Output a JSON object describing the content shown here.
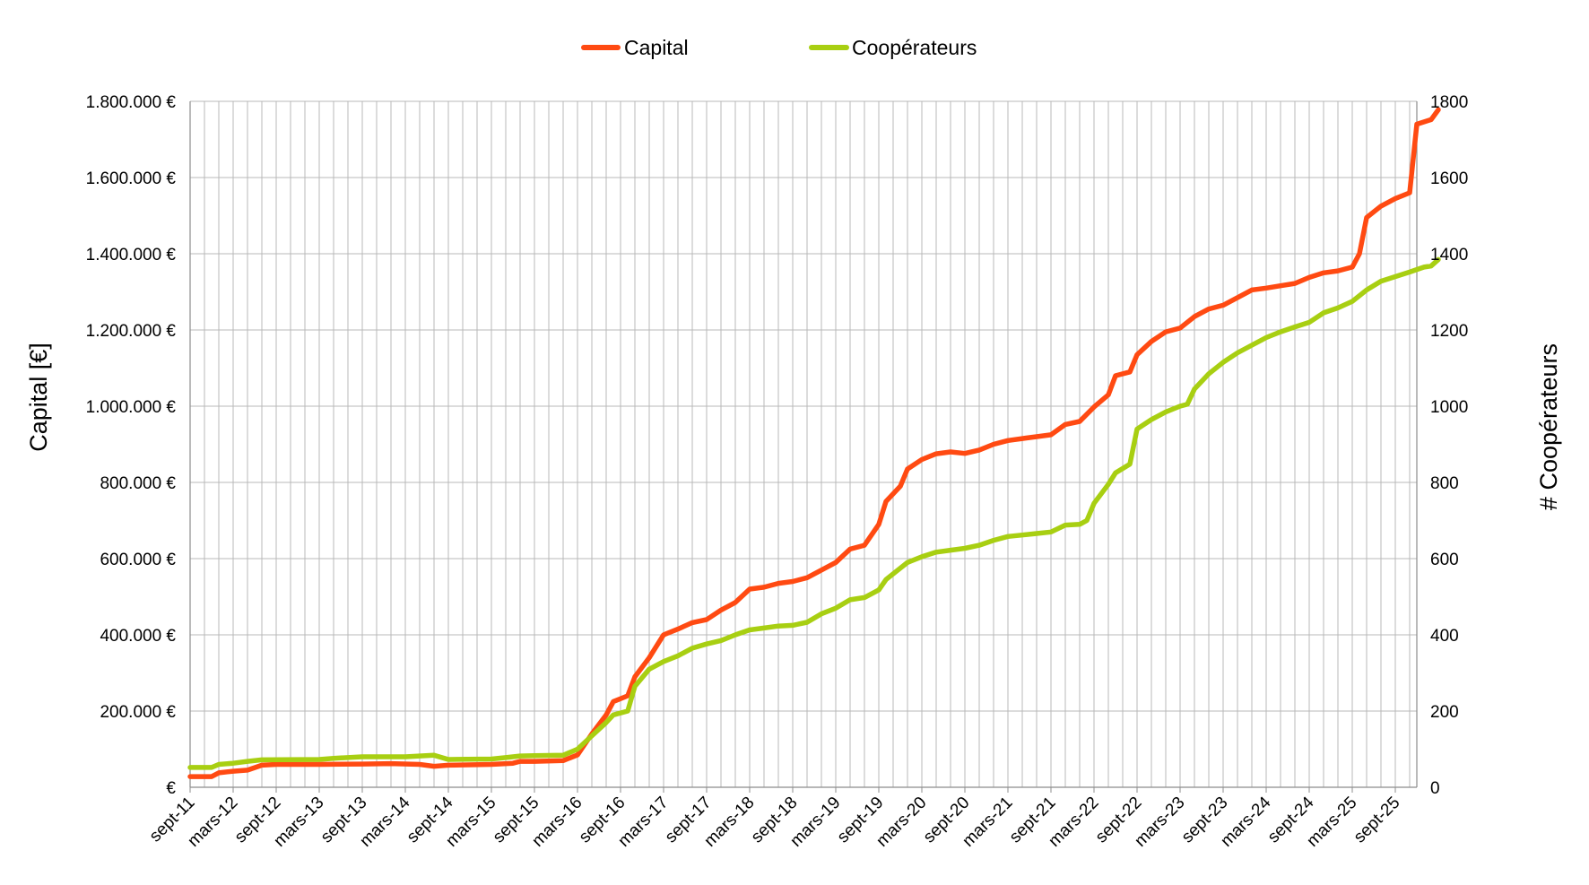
{
  "chart_data": {
    "type": "line",
    "legend_position": "top-center",
    "grid": true,
    "x_axis": {
      "tick_labels": [
        "sept-11",
        "mars-12",
        "sept-12",
        "mars-13",
        "sept-13",
        "mars-14",
        "sept-14",
        "mars-15",
        "sept-15",
        "mars-16",
        "sept-16",
        "mars-17",
        "sept-17",
        "mars-18",
        "sept-18",
        "mars-19",
        "sept-19",
        "mars-20",
        "sept-20",
        "mars-21",
        "sept-21",
        "mars-22",
        "sept-22",
        "mars-23",
        "sept-23",
        "mars-24",
        "sept-24",
        "mars-25",
        "sept-25"
      ],
      "range": [
        "2011-09",
        "2025-12"
      ]
    },
    "y_axis_left": {
      "label": "Capital [€]",
      "range": [
        0,
        1800000
      ],
      "tick_labels": [
        "€",
        "200.000 €",
        "400.000 €",
        "600.000 €",
        "800.000 €",
        "1.000.000 €",
        "1.200.000 €",
        "1.400.000 €",
        "1.600.000 €",
        "1.800.000 €"
      ]
    },
    "y_axis_right": {
      "label": "# Coopérateurs",
      "range": [
        0,
        1800
      ],
      "tick_labels": [
        "0",
        "200",
        "400",
        "600",
        "800",
        "1000",
        "1200",
        "1400",
        "1600",
        "1800"
      ]
    },
    "series": [
      {
        "name": "Capital",
        "axis": "left",
        "color": "#ff4a12",
        "points": [
          [
            "2011-09",
            28000
          ],
          [
            "2011-12",
            28000
          ],
          [
            "2012-01",
            38000
          ],
          [
            "2012-03",
            42000
          ],
          [
            "2012-05",
            45000
          ],
          [
            "2012-07",
            58000
          ],
          [
            "2012-09",
            60000
          ],
          [
            "2013-03",
            60000
          ],
          [
            "2013-09",
            61000
          ],
          [
            "2014-01",
            62000
          ],
          [
            "2014-05",
            60000
          ],
          [
            "2014-07",
            55000
          ],
          [
            "2014-09",
            58000
          ],
          [
            "2015-03",
            60000
          ],
          [
            "2015-06",
            63000
          ],
          [
            "2015-07",
            68000
          ],
          [
            "2015-09",
            68000
          ],
          [
            "2016-01",
            70000
          ],
          [
            "2016-03",
            85000
          ],
          [
            "2016-05",
            140000
          ],
          [
            "2016-07",
            190000
          ],
          [
            "2016-08",
            225000
          ],
          [
            "2016-10",
            240000
          ],
          [
            "2016-11",
            290000
          ],
          [
            "2017-01",
            340000
          ],
          [
            "2017-03",
            400000
          ],
          [
            "2017-05",
            415000
          ],
          [
            "2017-07",
            432000
          ],
          [
            "2017-09",
            440000
          ],
          [
            "2017-11",
            465000
          ],
          [
            "2018-01",
            485000
          ],
          [
            "2018-03",
            520000
          ],
          [
            "2018-05",
            525000
          ],
          [
            "2018-07",
            535000
          ],
          [
            "2018-09",
            540000
          ],
          [
            "2018-11",
            550000
          ],
          [
            "2019-01",
            570000
          ],
          [
            "2019-03",
            590000
          ],
          [
            "2019-05",
            625000
          ],
          [
            "2019-07",
            635000
          ],
          [
            "2019-09",
            690000
          ],
          [
            "2019-10",
            750000
          ],
          [
            "2019-12",
            790000
          ],
          [
            "2020-01",
            835000
          ],
          [
            "2020-03",
            860000
          ],
          [
            "2020-05",
            875000
          ],
          [
            "2020-07",
            880000
          ],
          [
            "2020-09",
            876000
          ],
          [
            "2020-11",
            885000
          ],
          [
            "2021-01",
            900000
          ],
          [
            "2021-03",
            910000
          ],
          [
            "2021-05",
            915000
          ],
          [
            "2021-07",
            920000
          ],
          [
            "2021-09",
            925000
          ],
          [
            "2021-11",
            952000
          ],
          [
            "2022-01",
            960000
          ],
          [
            "2022-03",
            998000
          ],
          [
            "2022-05",
            1030000
          ],
          [
            "2022-06",
            1080000
          ],
          [
            "2022-08",
            1090000
          ],
          [
            "2022-09",
            1135000
          ],
          [
            "2022-11",
            1170000
          ],
          [
            "2023-01",
            1195000
          ],
          [
            "2023-03",
            1205000
          ],
          [
            "2023-05",
            1235000
          ],
          [
            "2023-07",
            1255000
          ],
          [
            "2023-09",
            1265000
          ],
          [
            "2023-11",
            1285000
          ],
          [
            "2024-01",
            1305000
          ],
          [
            "2024-03",
            1310000
          ],
          [
            "2024-05",
            1316000
          ],
          [
            "2024-07",
            1322000
          ],
          [
            "2024-09",
            1338000
          ],
          [
            "2024-11",
            1350000
          ],
          [
            "2025-01",
            1355000
          ],
          [
            "2025-03",
            1365000
          ],
          [
            "2025-04",
            1400000
          ],
          [
            "2025-05",
            1495000
          ],
          [
            "2025-07",
            1525000
          ],
          [
            "2025-09",
            1545000
          ],
          [
            "2025-11",
            1560000
          ],
          [
            "2025-12",
            1740000
          ],
          [
            "2026-02",
            1752000
          ],
          [
            "2026-03",
            1778000
          ]
        ]
      },
      {
        "name": "Coopérateurs",
        "axis": "right",
        "color": "#a8cf12",
        "points": [
          [
            "2011-09",
            52
          ],
          [
            "2011-12",
            52
          ],
          [
            "2012-01",
            60
          ],
          [
            "2012-03",
            63
          ],
          [
            "2012-05",
            68
          ],
          [
            "2012-07",
            72
          ],
          [
            "2013-03",
            73
          ],
          [
            "2013-05",
            76
          ],
          [
            "2013-09",
            80
          ],
          [
            "2014-03",
            80
          ],
          [
            "2014-07",
            84
          ],
          [
            "2014-09",
            73
          ],
          [
            "2015-03",
            74
          ],
          [
            "2015-05",
            78
          ],
          [
            "2015-07",
            82
          ],
          [
            "2015-09",
            83
          ],
          [
            "2016-01",
            84
          ],
          [
            "2016-03",
            100
          ],
          [
            "2016-05",
            135
          ],
          [
            "2016-07",
            170
          ],
          [
            "2016-08",
            190
          ],
          [
            "2016-10",
            200
          ],
          [
            "2016-11",
            265
          ],
          [
            "2017-01",
            310
          ],
          [
            "2017-03",
            330
          ],
          [
            "2017-05",
            345
          ],
          [
            "2017-07",
            365
          ],
          [
            "2017-09",
            376
          ],
          [
            "2017-11",
            385
          ],
          [
            "2018-01",
            400
          ],
          [
            "2018-03",
            413
          ],
          [
            "2018-05",
            418
          ],
          [
            "2018-07",
            423
          ],
          [
            "2018-09",
            425
          ],
          [
            "2018-11",
            433
          ],
          [
            "2019-01",
            455
          ],
          [
            "2019-03",
            470
          ],
          [
            "2019-05",
            492
          ],
          [
            "2019-07",
            498
          ],
          [
            "2019-09",
            518
          ],
          [
            "2019-10",
            545
          ],
          [
            "2019-12",
            575
          ],
          [
            "2020-01",
            590
          ],
          [
            "2020-03",
            605
          ],
          [
            "2020-05",
            617
          ],
          [
            "2020-07",
            622
          ],
          [
            "2020-09",
            627
          ],
          [
            "2020-11",
            635
          ],
          [
            "2021-01",
            648
          ],
          [
            "2021-03",
            658
          ],
          [
            "2021-05",
            662
          ],
          [
            "2021-07",
            666
          ],
          [
            "2021-09",
            670
          ],
          [
            "2021-11",
            688
          ],
          [
            "2022-01",
            690
          ],
          [
            "2022-02",
            700
          ],
          [
            "2022-03",
            745
          ],
          [
            "2022-05",
            795
          ],
          [
            "2022-06",
            825
          ],
          [
            "2022-08",
            848
          ],
          [
            "2022-09",
            940
          ],
          [
            "2022-11",
            965
          ],
          [
            "2023-01",
            985
          ],
          [
            "2023-03",
            1000
          ],
          [
            "2023-04",
            1005
          ],
          [
            "2023-05",
            1045
          ],
          [
            "2023-07",
            1085
          ],
          [
            "2023-09",
            1115
          ],
          [
            "2023-11",
            1140
          ],
          [
            "2024-01",
            1160
          ],
          [
            "2024-03",
            1180
          ],
          [
            "2024-05",
            1195
          ],
          [
            "2024-07",
            1208
          ],
          [
            "2024-09",
            1220
          ],
          [
            "2024-11",
            1245
          ],
          [
            "2025-01",
            1258
          ],
          [
            "2025-03",
            1275
          ],
          [
            "2025-05",
            1305
          ],
          [
            "2025-07",
            1328
          ],
          [
            "2025-09",
            1340
          ],
          [
            "2025-11",
            1352
          ],
          [
            "2026-01",
            1365
          ],
          [
            "2026-02",
            1368
          ],
          [
            "2026-03",
            1385
          ]
        ]
      }
    ]
  }
}
